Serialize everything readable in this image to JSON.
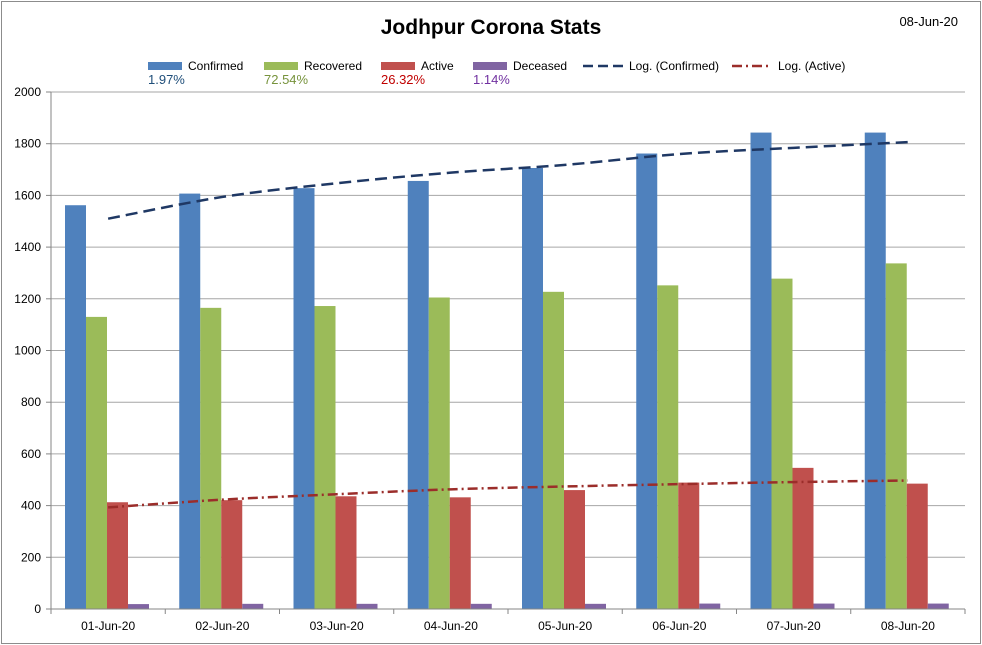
{
  "chart_data": {
    "type": "bar",
    "title": "Jodhpur Corona Stats",
    "date": "08-Jun-20",
    "categories": [
      "01-Jun-20",
      "02-Jun-20",
      "03-Jun-20",
      "04-Jun-20",
      "05-Jun-20",
      "06-Jun-20",
      "07-Jun-20",
      "08-Jun-20"
    ],
    "ylim": [
      0,
      2000
    ],
    "yticks": [
      "0",
      "200",
      "400",
      "600",
      "800",
      "1000",
      "1200",
      "1400",
      "1600",
      "1800",
      "2000"
    ],
    "grid": true,
    "legend_position": "top",
    "series": [
      {
        "name": "Confirmed",
        "color": "#4f81bd",
        "percent": "1.97%",
        "percent_color": "#1f4e79",
        "values": [
          1562,
          1607,
          1628,
          1656,
          1706,
          1762,
          1843,
          1843
        ]
      },
      {
        "name": "Recovered",
        "color": "#9bbb59",
        "percent": "72.54%",
        "percent_color": "#77933c",
        "values": [
          1130,
          1165,
          1172,
          1205,
          1227,
          1252,
          1278,
          1337
        ]
      },
      {
        "name": "Active",
        "color": "#c0504d",
        "percent": "26.32%",
        "percent_color": "#c00000",
        "values": [
          413,
          421,
          436,
          432,
          460,
          489,
          546,
          485
        ]
      },
      {
        "name": "Deceased",
        "color": "#8064a2",
        "percent": "1.14%",
        "percent_color": "#7030a0",
        "values": [
          19,
          20,
          20,
          20,
          20,
          21,
          21,
          21
        ]
      }
    ],
    "trendlines": [
      {
        "name": "Log. (Confirmed)",
        "color": "#1f3864",
        "style": "dashed",
        "values": [
          1510,
          1594,
          1647,
          1688,
          1718,
          1760,
          1784,
          1806
        ]
      },
      {
        "name": "Log. (Active)",
        "color": "#9b2d2a",
        "style": "dash-dot",
        "values": [
          393,
          423,
          444,
          463,
          474,
          483,
          491,
          497
        ]
      }
    ]
  }
}
